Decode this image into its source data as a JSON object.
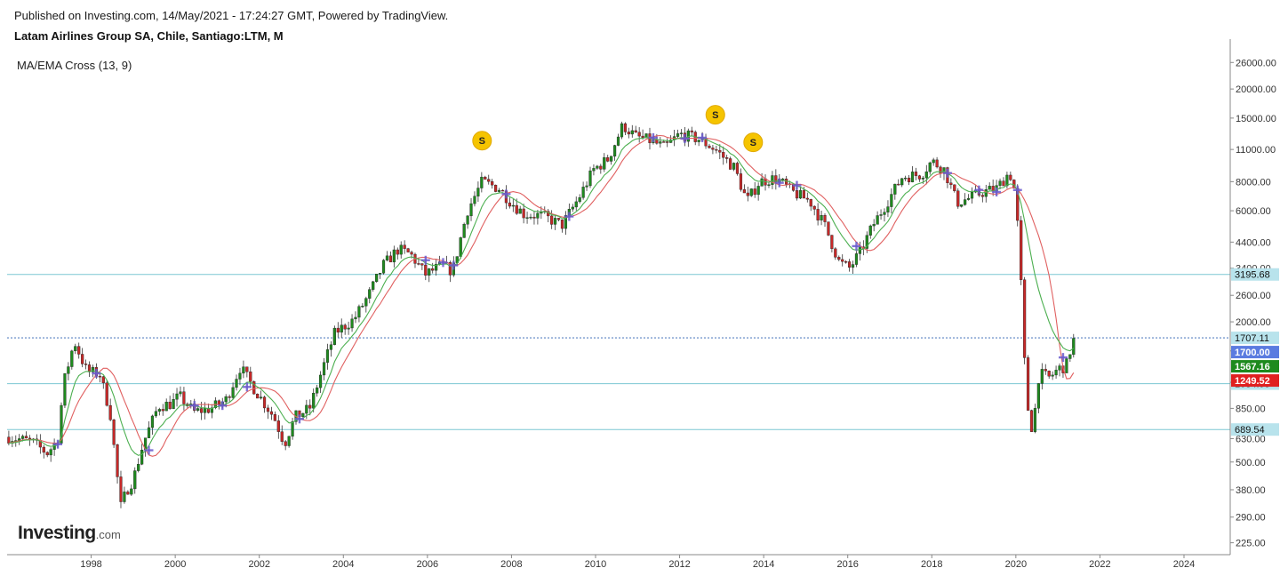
{
  "header": {
    "published": "Published on Investing.com, 14/May/2021 - 17:24:27 GMT, Powered by TradingView.",
    "symbol": "Latam Airlines Group SA, Chile, Santiago:LTM, M",
    "indicator": "MA/EMA Cross (13, 9)"
  },
  "logo": {
    "brand": "Investing",
    "domain": ".com"
  },
  "chart_data": {
    "type": "candlestick",
    "interval": "monthly",
    "scale": "log",
    "title": "Latam Airlines Group SA, Chile, Santiago:LTM, M",
    "y_ticks": [
      "26000.00",
      "20000.00",
      "15000.00",
      "11000.00",
      "8000.00",
      "6000.00",
      "4400.00",
      "3400.00",
      "2600.00",
      "2000.00",
      "1500.00",
      "1100.00",
      "850.00",
      "630.00",
      "500.00",
      "380.00",
      "290.00",
      "225.00"
    ],
    "x_ticks": [
      "1998",
      "2000",
      "2002",
      "2004",
      "2006",
      "2008",
      "2010",
      "2012",
      "2014",
      "2016",
      "2018",
      "2020",
      "2022",
      "2024"
    ],
    "ylim": [
      200,
      30000
    ],
    "xlim": [
      1996.0,
      2025.1
    ],
    "price_path": [
      [
        1996.05,
        640
      ],
      [
        1996.6,
        610
      ],
      [
        1996.95,
        545
      ],
      [
        1997.2,
        620
      ],
      [
        1997.35,
        1100
      ],
      [
        1997.6,
        1650
      ],
      [
        1997.9,
        1220
      ],
      [
        1998.2,
        1200
      ],
      [
        1998.45,
        820
      ],
      [
        1998.7,
        320
      ],
      [
        1998.85,
        380
      ],
      [
        1999.0,
        420
      ],
      [
        1999.25,
        610
      ],
      [
        1999.6,
        870
      ],
      [
        1999.9,
        890
      ],
      [
        2000.1,
        960
      ],
      [
        2000.45,
        820
      ],
      [
        2000.85,
        850
      ],
      [
        2001.2,
        920
      ],
      [
        2001.55,
        1280
      ],
      [
        2001.9,
        1020
      ],
      [
        2002.35,
        780
      ],
      [
        2002.6,
        600
      ],
      [
        2002.85,
        780
      ],
      [
        2003.2,
        850
      ],
      [
        2003.5,
        1250
      ],
      [
        2003.8,
        1800
      ],
      [
        2004.25,
        2050
      ],
      [
        2004.6,
        2600
      ],
      [
        2004.95,
        3500
      ],
      [
        2005.3,
        4100
      ],
      [
        2005.6,
        3900
      ],
      [
        2005.95,
        3200
      ],
      [
        2006.35,
        3500
      ],
      [
        2006.6,
        3300
      ],
      [
        2006.95,
        6000
      ],
      [
        2007.3,
        8000
      ],
      [
        2007.7,
        7500
      ],
      [
        2008.0,
        6500
      ],
      [
        2008.3,
        5800
      ],
      [
        2008.75,
        5700
      ],
      [
        2009.2,
        5200
      ],
      [
        2009.6,
        6800
      ],
      [
        2009.95,
        9000
      ],
      [
        2010.3,
        10000
      ],
      [
        2010.65,
        14000
      ],
      [
        2010.95,
        12500
      ],
      [
        2011.3,
        12000
      ],
      [
        2011.65,
        11200
      ],
      [
        2012.0,
        12800
      ],
      [
        2012.45,
        12200
      ],
      [
        2012.85,
        11000
      ],
      [
        2013.3,
        9200
      ],
      [
        2013.6,
        6600
      ],
      [
        2013.9,
        8000
      ],
      [
        2014.3,
        8300
      ],
      [
        2014.7,
        7200
      ],
      [
        2015.1,
        6600
      ],
      [
        2015.45,
        5200
      ],
      [
        2015.8,
        3600
      ],
      [
        2016.05,
        3400
      ],
      [
        2016.3,
        4000
      ],
      [
        2016.6,
        5200
      ],
      [
        2016.95,
        6600
      ],
      [
        2017.3,
        8400
      ],
      [
        2017.75,
        8600
      ],
      [
        2018.0,
        9800
      ],
      [
        2018.3,
        9000
      ],
      [
        2018.6,
        6500
      ],
      [
        2018.9,
        6800
      ],
      [
        2019.2,
        7200
      ],
      [
        2019.55,
        7500
      ],
      [
        2019.85,
        8800
      ],
      [
        2020.0,
        7000
      ],
      [
        2020.12,
        3000
      ],
      [
        2020.2,
        1400
      ],
      [
        2020.3,
        800
      ],
      [
        2020.4,
        680
      ],
      [
        2020.55,
        1200
      ],
      [
        2020.8,
        1150
      ],
      [
        2021.0,
        1250
      ],
      [
        2021.2,
        1300
      ],
      [
        2021.37,
        1700
      ]
    ],
    "series": [
      {
        "name": "MA 13",
        "color": "#e06060"
      },
      {
        "name": "EMA 9",
        "color": "#4caf50"
      }
    ],
    "cross_markers_x": [
      1997.2,
      1998.1,
      1999.3,
      2000.45,
      2001.05,
      2001.7,
      2002.9,
      2005.95,
      2006.35,
      2006.6,
      2007.85,
      2009.3,
      2011.35,
      2012.1,
      2012.5,
      2014.35,
      2014.75,
      2016.2,
      2018.35,
      2019.1,
      2019.5,
      2020.0,
      2021.05
    ],
    "signals": [
      {
        "label": "S",
        "x": 2007.3,
        "y": 12000
      },
      {
        "label": "S",
        "x": 2012.85,
        "y": 15500
      },
      {
        "label": "S",
        "x": 2013.75,
        "y": 11800
      }
    ],
    "horizontal_levels": [
      {
        "value": 3195.68,
        "label": "3195.68"
      },
      {
        "value": 1084.95,
        "label": "1084.95"
      },
      {
        "value": 689.54,
        "label": "689.54"
      }
    ],
    "price_tags": [
      {
        "label": "1707.11",
        "value": 1707.11,
        "style": "line",
        "bg": "#b8e3ec",
        "fg": "#111111"
      },
      {
        "label": "1700.00",
        "value": 1700.0,
        "style": "solid",
        "bg": "#5b7be0",
        "fg": "#ffffff"
      },
      {
        "label": "1567.16",
        "value": 1567.16,
        "style": "solid",
        "bg": "#1e8a1e",
        "fg": "#ffffff"
      },
      {
        "label": "1249.52",
        "value": 1249.52,
        "style": "solid",
        "bg": "#e02020",
        "fg": "#ffffff"
      }
    ],
    "colors": {
      "up": "#1e8a1e",
      "down": "#c62828",
      "level_line": "#7cc7d3",
      "signal": "#f5c400",
      "cross": "#6a5acd",
      "axis": "#888888"
    }
  }
}
